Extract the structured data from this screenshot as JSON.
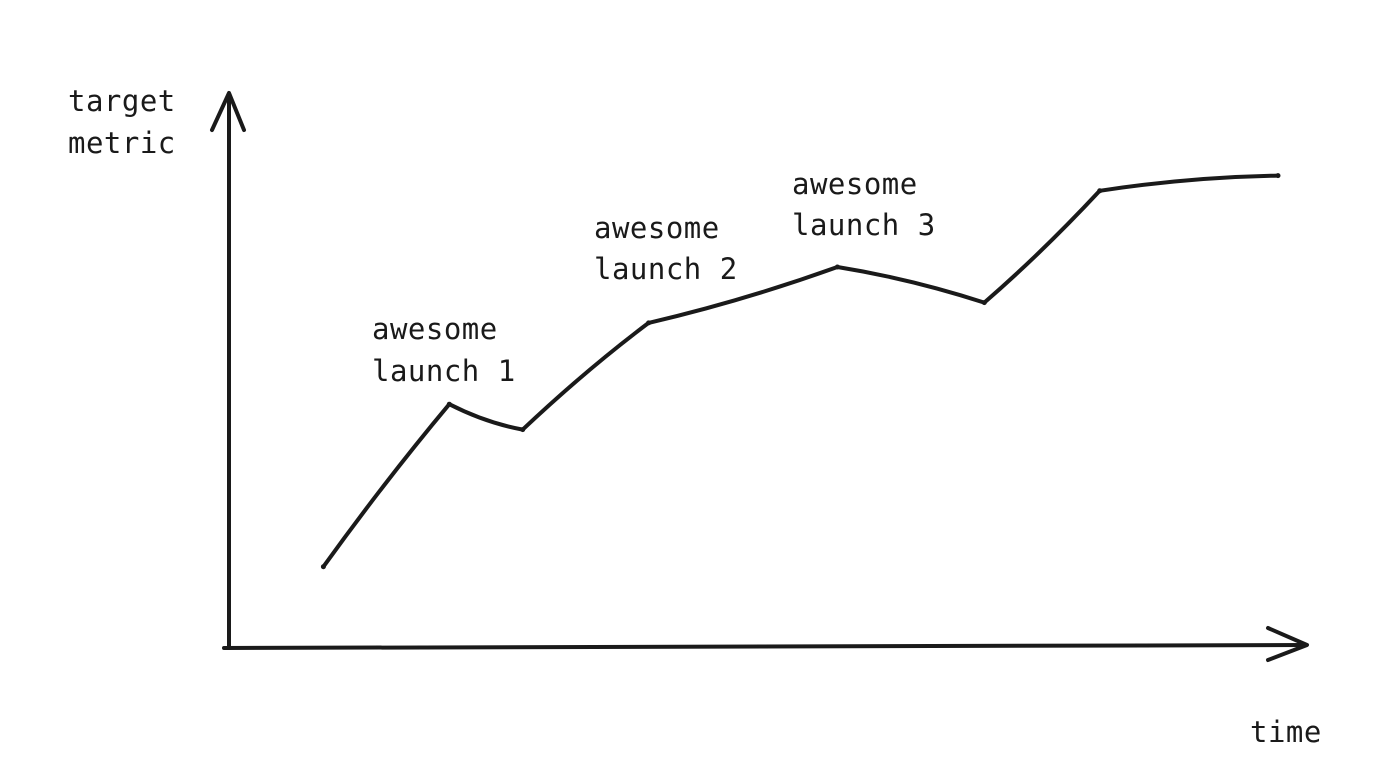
{
  "chart_data": {
    "type": "line",
    "xlabel": "time",
    "ylabel_lines": [
      "target",
      "metric"
    ],
    "xlim": [
      0,
      100
    ],
    "ylim": [
      0,
      100
    ],
    "grid": false,
    "series": [
      {
        "x": [
          9,
          21,
          28,
          40,
          58,
          72,
          83,
          100
        ],
        "y": [
          16,
          48,
          43,
          64,
          75,
          68,
          90,
          93
        ]
      }
    ],
    "annotations": [
      {
        "lines": [
          "awesome",
          "launch 1"
        ],
        "x": 21,
        "y": 48
      },
      {
        "lines": [
          "awesome",
          "launch 2"
        ],
        "x": 40,
        "y": 64
      },
      {
        "lines": [
          "awesome",
          "launch 3"
        ],
        "x": 58,
        "y": 75
      }
    ],
    "line_color": "#1a1a1a"
  }
}
